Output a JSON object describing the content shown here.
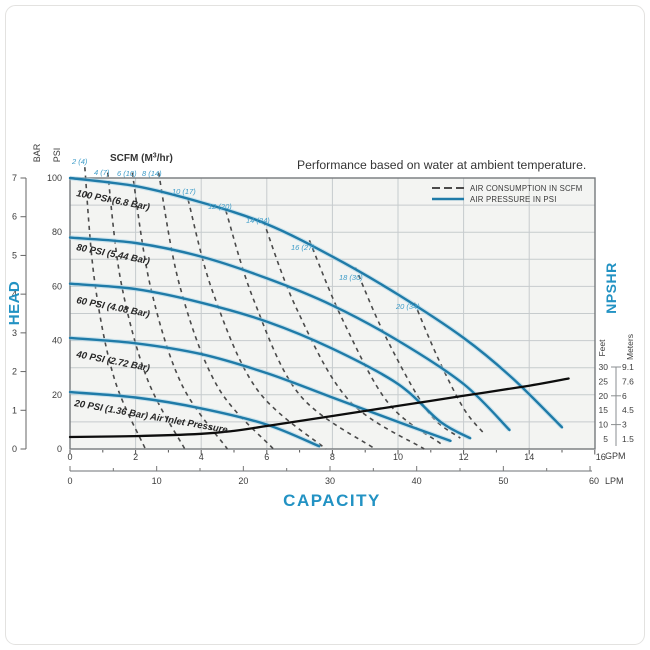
{
  "page": {
    "title": "Performance based on water at ambient temperature."
  },
  "legend": {
    "consumption": "AIR CONSUMPTION IN SCFM",
    "pressure": "AIR PRESSURE IN PSI"
  },
  "axes": {
    "head_title": "HEAD",
    "capacity_title": "CAPACITY",
    "npshr_title": "NPSHR",
    "bar_label": "BAR",
    "psi_label": "PSI",
    "feet_label": "Feet",
    "meters_label": "Meters",
    "gpm_unit": "GPM",
    "lpm_unit": "LPM",
    "scfm_header": {
      "pre": "SCFM (M",
      "sup": "3",
      "post": "/hr)"
    },
    "psi_ticks": [
      100,
      80,
      60,
      40,
      20,
      0
    ],
    "bar_ticks": [
      7,
      6,
      5,
      4,
      3,
      2,
      1,
      0
    ],
    "gpm_ticks": [
      0,
      2,
      4,
      6,
      8,
      10,
      12,
      14,
      16
    ],
    "lpm_ticks": [
      0,
      10,
      20,
      30,
      40,
      50,
      60
    ],
    "npshr_feet_ticks": [
      30,
      25,
      20,
      15,
      10,
      5
    ],
    "npshr_meters_ticks": [
      "9.1",
      "7.6",
      "6",
      "4.5",
      "3",
      "1.5"
    ]
  },
  "colors": {
    "accent_blue": "#2292c3",
    "curve_blue": "#1f7ba8",
    "curve_blue_halo": "#aed6e7",
    "scfm_label_blue": "#3f9dc9",
    "dashed_gray": "#4a4a4a",
    "grid_gray": "#c6cbcd",
    "border_gray": "#75797c",
    "npshr_black": "#0d0d0d"
  },
  "chart_data": {
    "type": "line",
    "title": "Performance based on water at ambient temperature.",
    "grid": true,
    "x_axis": {
      "label": "CAPACITY",
      "units": [
        "GPM",
        "LPM"
      ],
      "gpm_range": [
        0,
        16
      ],
      "lpm_range": [
        0,
        60
      ]
    },
    "y_axis": {
      "label": "HEAD",
      "units": [
        "PSI",
        "BAR"
      ],
      "psi_range": [
        0,
        100
      ],
      "bar_range": [
        0,
        7
      ]
    },
    "secondary_y_axis": {
      "label": "NPSHR",
      "units": [
        "Feet",
        "Meters"
      ],
      "feet_range": [
        5,
        30
      ],
      "meters_range": [
        1.5,
        9.1
      ]
    },
    "legend_position": "top-right-inside",
    "air_pressure_curves_head_psi_vs_gpm": [
      {
        "label": "100 PSI (6.8 Bar)",
        "points": [
          [
            0,
            100
          ],
          [
            2,
            97
          ],
          [
            4,
            91
          ],
          [
            6,
            83
          ],
          [
            8,
            71
          ],
          [
            10,
            57
          ],
          [
            12,
            41
          ],
          [
            13.5,
            26
          ],
          [
            15,
            8
          ]
        ]
      },
      {
        "label": "80 PSI (5.44 Bar)",
        "points": [
          [
            0,
            78
          ],
          [
            2,
            76
          ],
          [
            4,
            71
          ],
          [
            6,
            63
          ],
          [
            8,
            53
          ],
          [
            10,
            40
          ],
          [
            12,
            24
          ],
          [
            13.4,
            7
          ]
        ]
      },
      {
        "label": "60 PSI (4.08 Bar)",
        "points": [
          [
            0,
            61
          ],
          [
            2,
            59
          ],
          [
            4,
            54
          ],
          [
            6,
            47
          ],
          [
            8,
            37
          ],
          [
            10,
            24
          ],
          [
            11.3,
            10
          ],
          [
            12.2,
            4
          ]
        ]
      },
      {
        "label": "40 PSI (2.72 Bar)",
        "points": [
          [
            0,
            41
          ],
          [
            2,
            39
          ],
          [
            4,
            35
          ],
          [
            6,
            28
          ],
          [
            8,
            19
          ],
          [
            10,
            10
          ],
          [
            11.6,
            3
          ]
        ]
      },
      {
        "label": "20 PSI (1.36 Bar) Air Inlet Pressure",
        "points": [
          [
            0,
            21
          ],
          [
            2,
            19
          ],
          [
            4,
            15
          ],
          [
            6,
            9
          ],
          [
            7.6,
            1
          ]
        ]
      }
    ],
    "air_consumption_curves_scfm_m3hr": [
      {
        "label": "2 (4)",
        "points": [
          [
            0.45,
            104
          ],
          [
            0.75,
            62
          ],
          [
            1.35,
            26
          ],
          [
            2.3,
            0
          ]
        ]
      },
      {
        "label": "4 (7)",
        "points": [
          [
            1.15,
            102
          ],
          [
            1.55,
            62
          ],
          [
            2.35,
            26
          ],
          [
            3.5,
            0
          ]
        ]
      },
      {
        "label": "6 (10)",
        "points": [
          [
            1.9,
            102
          ],
          [
            2.45,
            60
          ],
          [
            3.4,
            24
          ],
          [
            4.8,
            0
          ]
        ]
      },
      {
        "label": "8 (14)",
        "points": [
          [
            2.7,
            102
          ],
          [
            3.35,
            60
          ],
          [
            4.5,
            23
          ],
          [
            6.2,
            0
          ]
        ]
      },
      {
        "label": "10 (17)",
        "points": [
          [
            3.6,
            92
          ],
          [
            4.35,
            58
          ],
          [
            5.7,
            22
          ],
          [
            7.8,
            0
          ]
        ]
      },
      {
        "label": "12 (20)",
        "points": [
          [
            4.75,
            88
          ],
          [
            5.6,
            55
          ],
          [
            7.0,
            20
          ],
          [
            9.3,
            0
          ]
        ]
      },
      {
        "label": "14 (24)",
        "points": [
          [
            5.9,
            84
          ],
          [
            6.9,
            52
          ],
          [
            8.5,
            18
          ],
          [
            10.8,
            0
          ]
        ]
      },
      {
        "label": "16 (27)",
        "points": [
          [
            7.3,
            77
          ],
          [
            8.3,
            48
          ],
          [
            9.7,
            17
          ],
          [
            11.3,
            2
          ]
        ]
      },
      {
        "label": "18 (30)",
        "points": [
          [
            8.7,
            67
          ],
          [
            9.6,
            42
          ],
          [
            10.9,
            14
          ],
          [
            11.9,
            4
          ]
        ]
      },
      {
        "label": "20 (34)",
        "points": [
          [
            10.5,
            54
          ],
          [
            11.2,
            34
          ],
          [
            12.0,
            15
          ],
          [
            12.6,
            6
          ]
        ]
      }
    ],
    "npshr_curve_feet_vs_gpm": [
      [
        0,
        5.7
      ],
      [
        2,
        6
      ],
      [
        4,
        6.8
      ],
      [
        5,
        7.8
      ],
      [
        6,
        9.5
      ],
      [
        8,
        13
      ],
      [
        10,
        16.5
      ],
      [
        12,
        20
      ],
      [
        14,
        23.5
      ],
      [
        15.2,
        26
      ]
    ]
  }
}
